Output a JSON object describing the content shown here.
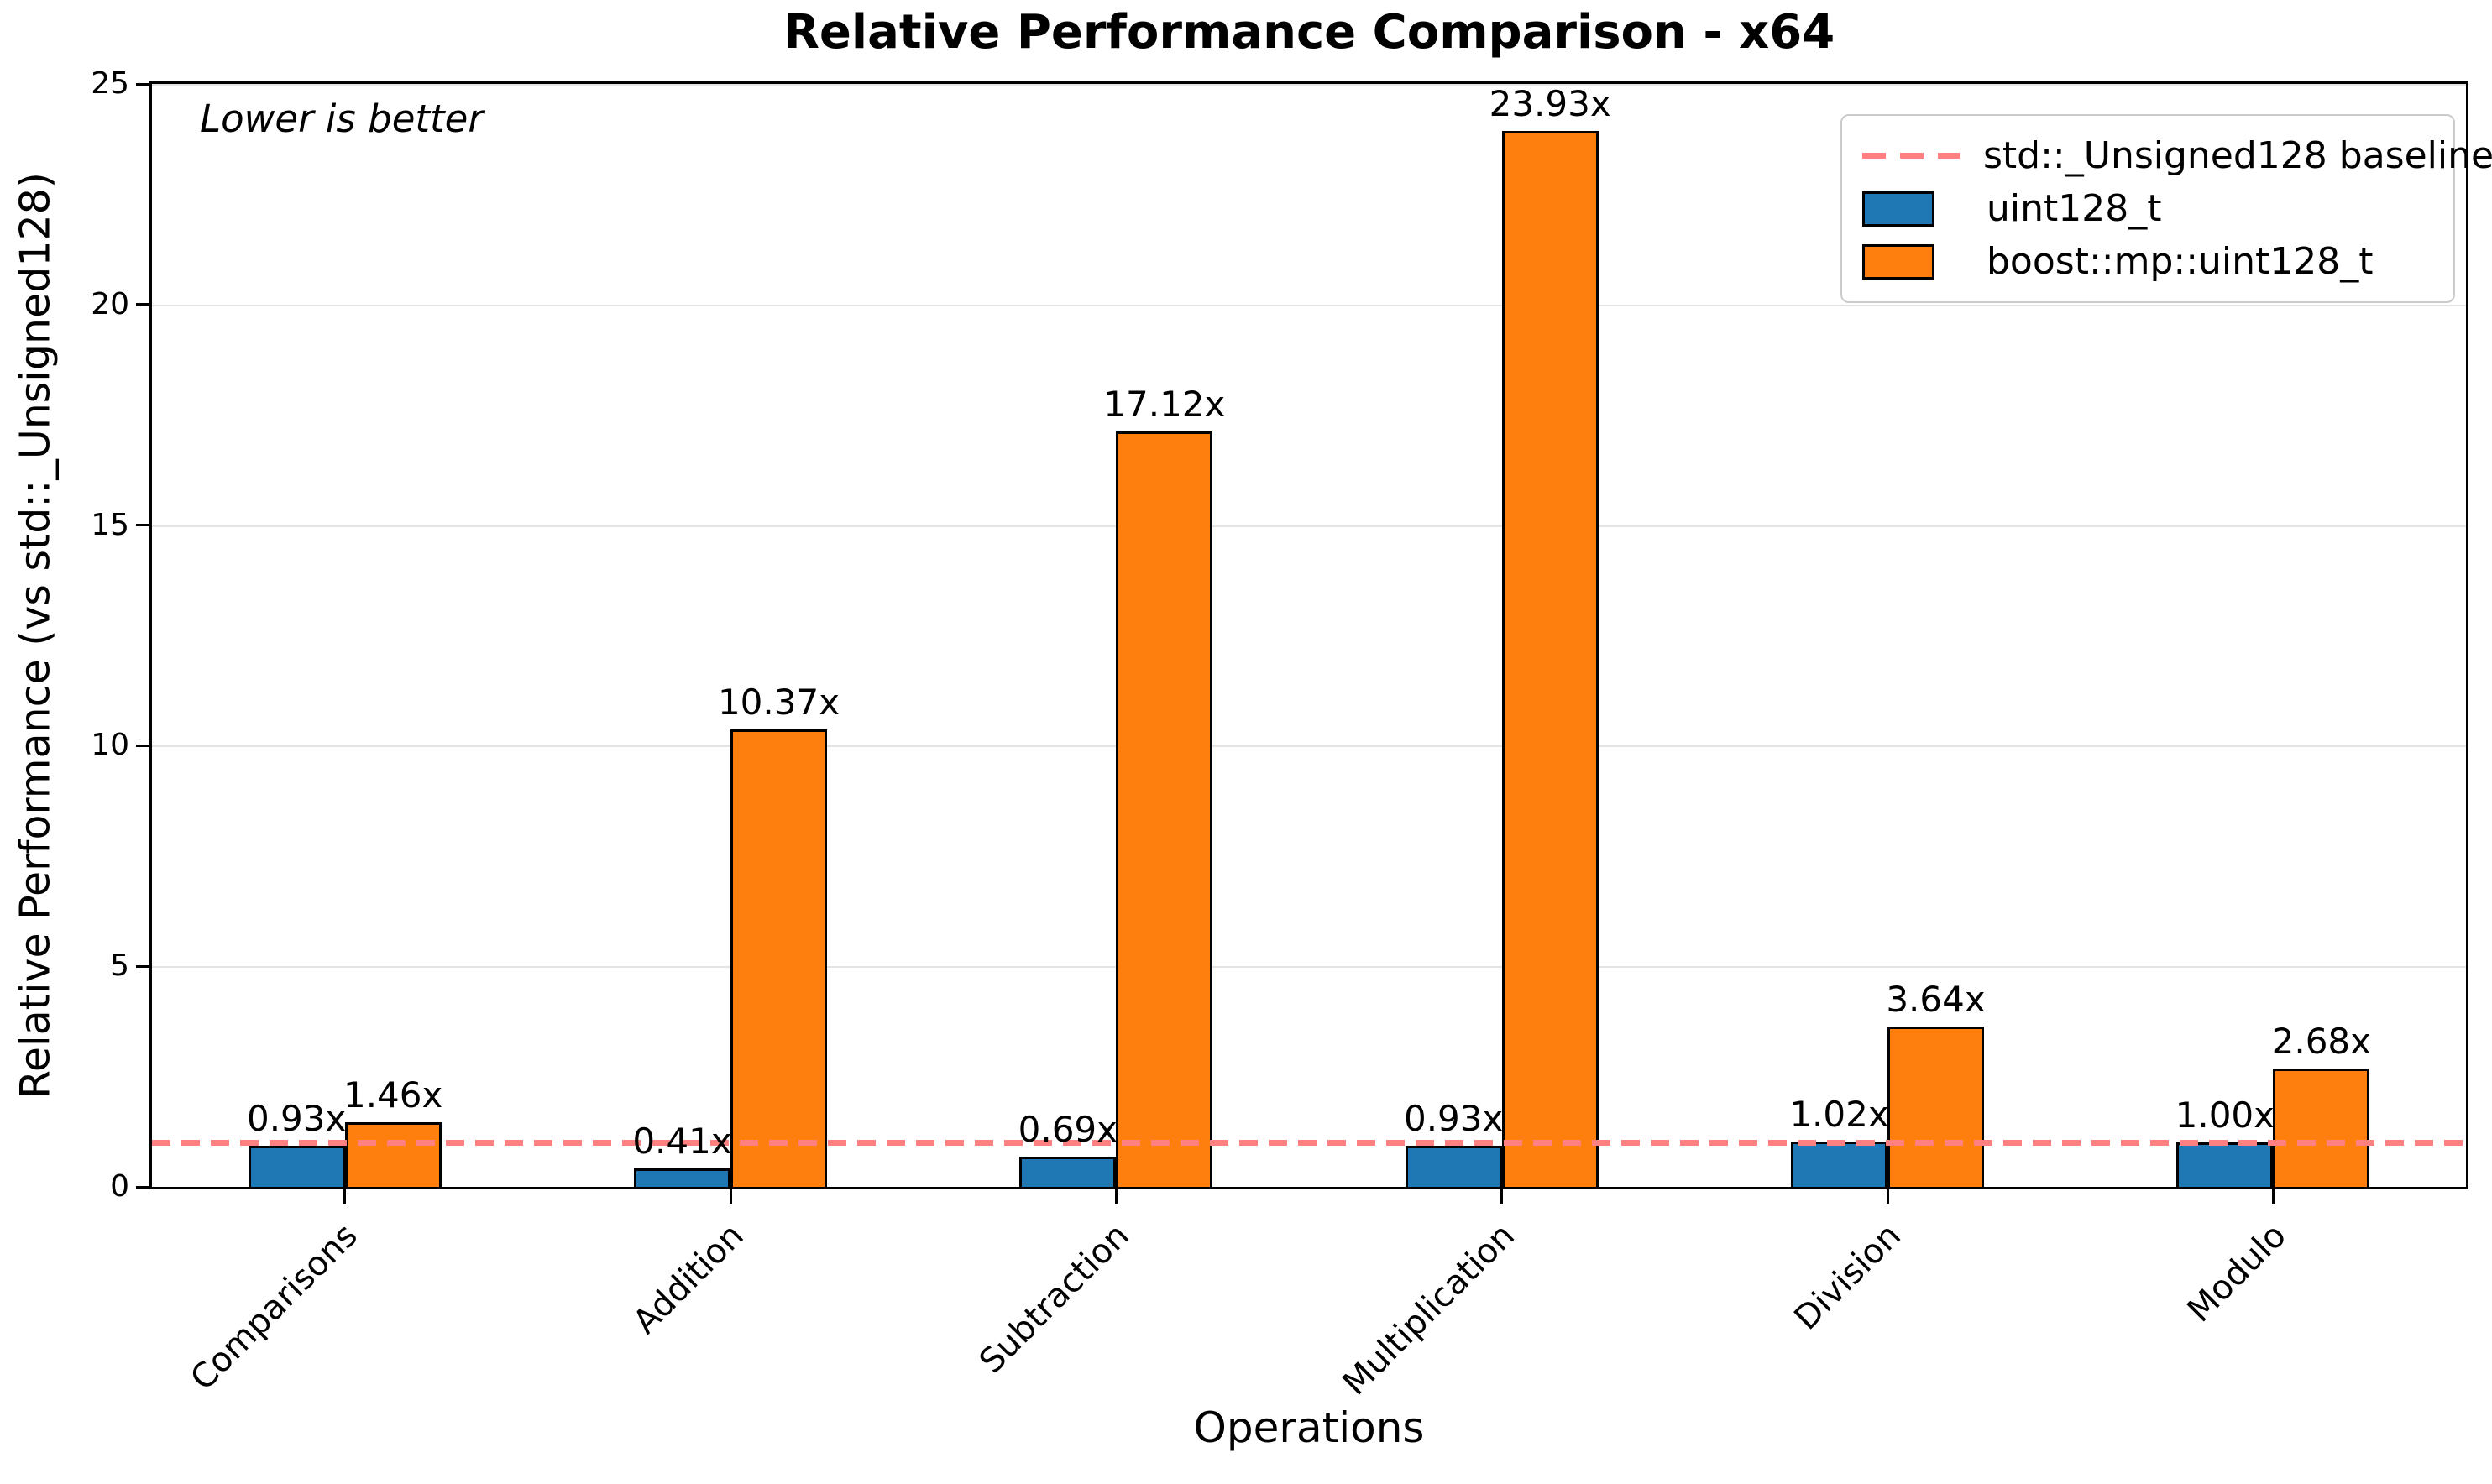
{
  "chart_data": {
    "type": "bar",
    "title": "Relative Performance Comparison - x64",
    "xlabel": "Operations",
    "ylabel": "Relative Performance (vs std::_Unsigned128)",
    "annotation": "Lower is better",
    "categories": [
      "Comparisons",
      "Addition",
      "Subtraction",
      "Multiplication",
      "Division",
      "Modulo"
    ],
    "series": [
      {
        "name": "uint128_t",
        "color": "#1f77b4",
        "values": [
          0.93,
          0.41,
          0.69,
          0.93,
          1.02,
          1.0
        ],
        "labels": [
          "0.93x",
          "0.41x",
          "0.69x",
          "0.93x",
          "1.02x",
          "1.00x"
        ]
      },
      {
        "name": "boost::mp::uint128_t",
        "color": "#ff7f0e",
        "values": [
          1.46,
          10.37,
          17.12,
          23.93,
          3.64,
          2.68
        ],
        "labels": [
          "1.46x",
          "10.37x",
          "17.12x",
          "23.93x",
          "3.64x",
          "2.68x"
        ]
      }
    ],
    "baseline": {
      "label": "std::_Unsigned128 baseline",
      "value": 1.0,
      "color": "#ff8080"
    },
    "ylim": [
      0,
      25
    ],
    "yticks": [
      0,
      5,
      10,
      15,
      20,
      25
    ],
    "grid": true,
    "legend_position": "upper right"
  }
}
